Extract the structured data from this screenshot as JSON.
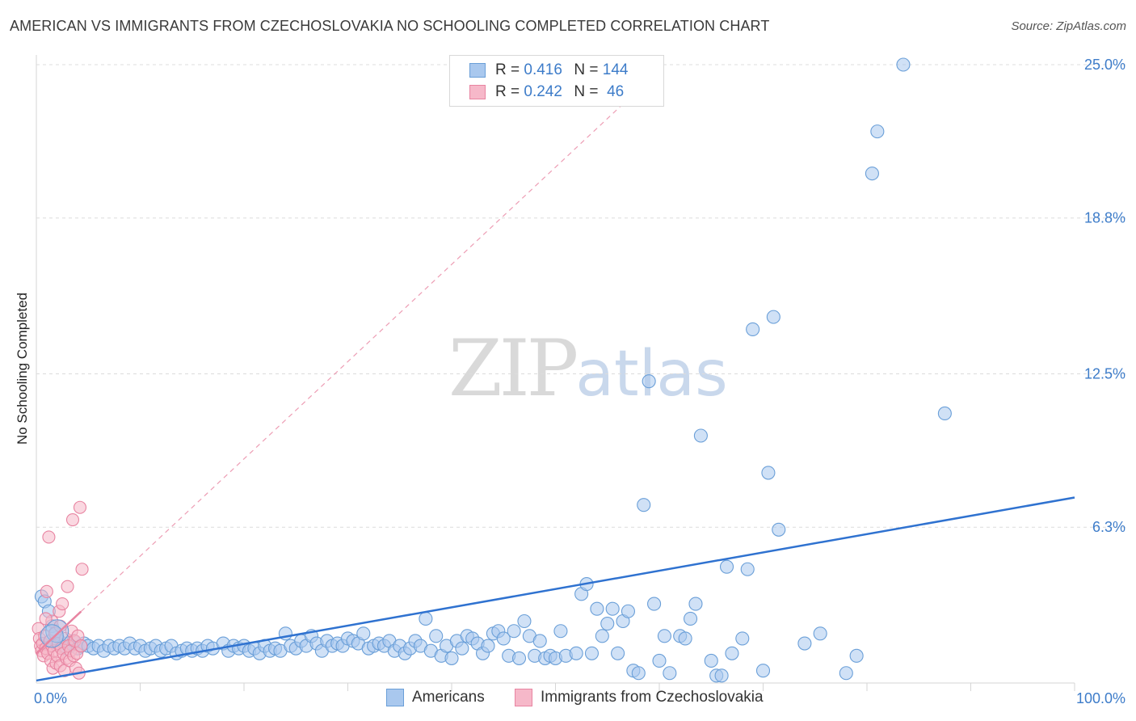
{
  "title": "AMERICAN VS IMMIGRANTS FROM CZECHOSLOVAKIA NO SCHOOLING COMPLETED CORRELATION CHART",
  "source": "Source: ZipAtlas.com",
  "watermark": {
    "zip": "ZIP",
    "atlas": "atlas"
  },
  "legend": {
    "rows": [
      {
        "r_label": "R =",
        "r": "0.416",
        "n_label": "N =",
        "n": "144",
        "color": "#a9c8ee",
        "border": "#6a9fd8"
      },
      {
        "r_label": "R =",
        "r": "0.242",
        "n_label": "N =",
        "n": "46",
        "color": "#f6b8c9",
        "border": "#e884a1"
      }
    ]
  },
  "bottom_legend": [
    {
      "label": "Americans",
      "color": "#a9c8ee",
      "border": "#6a9fd8"
    },
    {
      "label": "Immigrants from Czechoslovakia",
      "color": "#f6b8c9",
      "border": "#e884a1"
    }
  ],
  "chart_data": {
    "type": "scatter",
    "xlabel": "",
    "ylabel": "No Schooling Completed",
    "xlim": [
      0,
      100
    ],
    "ylim": [
      0,
      25.0
    ],
    "x_tick_labels": [
      {
        "value": 0,
        "label": "0.0%"
      },
      {
        "value": 100,
        "label": "100.0%"
      }
    ],
    "y_ticks": [
      {
        "value": 6.3,
        "label": "6.3%"
      },
      {
        "value": 12.5,
        "label": "12.5%"
      },
      {
        "value": 18.8,
        "label": "18.8%"
      },
      {
        "value": 25.0,
        "label": "25.0%"
      }
    ],
    "grid": true,
    "series": [
      {
        "name": "Americans",
        "color": "#a9c8ee",
        "stroke": "#6a9fd8",
        "trend": {
          "x": [
            0,
            100
          ],
          "y": [
            0.1,
            7.5
          ],
          "color": "#2f72d0",
          "style": "solid"
        },
        "points": [
          [
            0.5,
            3.5
          ],
          [
            0.8,
            3.3
          ],
          [
            1.2,
            2.9
          ],
          [
            1.5,
            2.3
          ],
          [
            1.8,
            2.0
          ],
          [
            2.0,
            1.6
          ],
          [
            2.2,
            1.7
          ],
          [
            2.5,
            1.5
          ],
          [
            2.8,
            1.4
          ],
          [
            3.0,
            1.6
          ],
          [
            3.3,
            1.5
          ],
          [
            3.6,
            1.7
          ],
          [
            4.0,
            1.4
          ],
          [
            4.3,
            1.5
          ],
          [
            4.6,
            1.6
          ],
          [
            5.0,
            1.5
          ],
          [
            5.5,
            1.4
          ],
          [
            6.0,
            1.5
          ],
          [
            6.5,
            1.3
          ],
          [
            7.0,
            1.5
          ],
          [
            7.5,
            1.4
          ],
          [
            8.0,
            1.5
          ],
          [
            8.5,
            1.4
          ],
          [
            9.0,
            1.6
          ],
          [
            9.5,
            1.4
          ],
          [
            10.0,
            1.5
          ],
          [
            10.5,
            1.3
          ],
          [
            11.0,
            1.4
          ],
          [
            11.5,
            1.5
          ],
          [
            12.0,
            1.3
          ],
          [
            12.5,
            1.4
          ],
          [
            13.0,
            1.5
          ],
          [
            13.5,
            1.2
          ],
          [
            14.0,
            1.3
          ],
          [
            14.5,
            1.4
          ],
          [
            15.0,
            1.3
          ],
          [
            15.5,
            1.4
          ],
          [
            16.0,
            1.3
          ],
          [
            16.5,
            1.5
          ],
          [
            17.0,
            1.4
          ],
          [
            18.0,
            1.6
          ],
          [
            18.5,
            1.3
          ],
          [
            19.0,
            1.5
          ],
          [
            19.5,
            1.4
          ],
          [
            20.0,
            1.5
          ],
          [
            20.5,
            1.3
          ],
          [
            21.0,
            1.4
          ],
          [
            21.5,
            1.2
          ],
          [
            22.0,
            1.5
          ],
          [
            22.5,
            1.3
          ],
          [
            23.0,
            1.4
          ],
          [
            23.5,
            1.3
          ],
          [
            24.0,
            2.0
          ],
          [
            24.5,
            1.5
          ],
          [
            25.0,
            1.4
          ],
          [
            25.5,
            1.7
          ],
          [
            26.0,
            1.5
          ],
          [
            26.5,
            1.9
          ],
          [
            27.0,
            1.6
          ],
          [
            27.5,
            1.3
          ],
          [
            28.0,
            1.7
          ],
          [
            28.5,
            1.5
          ],
          [
            29.0,
            1.6
          ],
          [
            29.5,
            1.5
          ],
          [
            30.0,
            1.8
          ],
          [
            30.5,
            1.7
          ],
          [
            31.0,
            1.6
          ],
          [
            31.5,
            2.0
          ],
          [
            32.0,
            1.4
          ],
          [
            32.5,
            1.5
          ],
          [
            33.0,
            1.6
          ],
          [
            33.5,
            1.5
          ],
          [
            34.0,
            1.7
          ],
          [
            34.5,
            1.3
          ],
          [
            35.0,
            1.5
          ],
          [
            35.5,
            1.2
          ],
          [
            36.0,
            1.4
          ],
          [
            36.5,
            1.7
          ],
          [
            37.0,
            1.5
          ],
          [
            37.5,
            2.6
          ],
          [
            38.0,
            1.3
          ],
          [
            38.5,
            1.9
          ],
          [
            39.0,
            1.1
          ],
          [
            39.5,
            1.5
          ],
          [
            40.0,
            1.0
          ],
          [
            40.5,
            1.7
          ],
          [
            41.0,
            1.4
          ],
          [
            41.5,
            1.9
          ],
          [
            42.0,
            1.8
          ],
          [
            42.5,
            1.6
          ],
          [
            43.0,
            1.2
          ],
          [
            43.5,
            1.5
          ],
          [
            44.0,
            2.0
          ],
          [
            44.5,
            2.1
          ],
          [
            45.0,
            1.8
          ],
          [
            45.5,
            1.1
          ],
          [
            46.0,
            2.1
          ],
          [
            46.5,
            1.0
          ],
          [
            47.0,
            2.5
          ],
          [
            47.5,
            1.9
          ],
          [
            48.0,
            1.1
          ],
          [
            48.5,
            1.7
          ],
          [
            49.0,
            1.0
          ],
          [
            49.5,
            1.1
          ],
          [
            50.0,
            1.0
          ],
          [
            50.5,
            2.1
          ],
          [
            51.0,
            1.1
          ],
          [
            52.0,
            1.2
          ],
          [
            52.5,
            3.6
          ],
          [
            53.0,
            4.0
          ],
          [
            53.5,
            1.2
          ],
          [
            54.0,
            3.0
          ],
          [
            54.5,
            1.9
          ],
          [
            55.0,
            2.4
          ],
          [
            55.5,
            3.0
          ],
          [
            56.0,
            1.2
          ],
          [
            56.5,
            2.5
          ],
          [
            57.0,
            2.9
          ],
          [
            57.5,
            0.5
          ],
          [
            58.0,
            0.4
          ],
          [
            58.5,
            7.2
          ],
          [
            59.0,
            12.2
          ],
          [
            59.5,
            3.2
          ],
          [
            60.0,
            0.9
          ],
          [
            60.5,
            1.9
          ],
          [
            61.0,
            0.4
          ],
          [
            62.0,
            1.9
          ],
          [
            62.5,
            1.8
          ],
          [
            63.0,
            2.6
          ],
          [
            63.5,
            3.2
          ],
          [
            64.0,
            10.0
          ],
          [
            65.0,
            0.9
          ],
          [
            65.5,
            0.3
          ],
          [
            66.0,
            0.3
          ],
          [
            66.5,
            4.7
          ],
          [
            67.0,
            1.2
          ],
          [
            68.0,
            1.8
          ],
          [
            68.5,
            4.6
          ],
          [
            69.0,
            14.3
          ],
          [
            70.0,
            0.5
          ],
          [
            70.5,
            8.5
          ],
          [
            71.0,
            14.8
          ],
          [
            71.5,
            6.2
          ],
          [
            74.0,
            1.6
          ],
          [
            75.5,
            2.0
          ],
          [
            78.0,
            0.4
          ],
          [
            79.0,
            1.1
          ],
          [
            80.5,
            20.6
          ],
          [
            81.0,
            22.3
          ],
          [
            83.5,
            25.0
          ],
          [
            87.5,
            10.9
          ]
        ]
      },
      {
        "name": "Immigrants from Czechoslovakia",
        "color": "#f6b8c9",
        "stroke": "#e884a1",
        "trend": {
          "x": [
            0,
            58
          ],
          "y": [
            1.2,
            24.0
          ],
          "color": "#e884a1",
          "style": "dashed",
          "solid_until": 4.3
        },
        "points": [
          [
            0.2,
            2.2
          ],
          [
            0.3,
            1.8
          ],
          [
            0.4,
            1.5
          ],
          [
            0.5,
            1.3
          ],
          [
            0.6,
            1.6
          ],
          [
            0.7,
            1.1
          ],
          [
            0.8,
            1.9
          ],
          [
            0.9,
            1.4
          ],
          [
            1.0,
            3.7
          ],
          [
            1.1,
            1.2
          ],
          [
            1.2,
            5.9
          ],
          [
            1.3,
            1.7
          ],
          [
            1.4,
            0.9
          ],
          [
            1.5,
            1.5
          ],
          [
            1.6,
            0.6
          ],
          [
            1.7,
            1.3
          ],
          [
            1.8,
            2.0
          ],
          [
            1.9,
            0.8
          ],
          [
            2.0,
            1.1
          ],
          [
            2.1,
            1.6
          ],
          [
            2.2,
            2.9
          ],
          [
            2.3,
            0.7
          ],
          [
            2.4,
            1.4
          ],
          [
            2.5,
            3.2
          ],
          [
            2.6,
            1.2
          ],
          [
            2.7,
            0.5
          ],
          [
            2.8,
            1.8
          ],
          [
            2.9,
            1.0
          ],
          [
            3.0,
            3.9
          ],
          [
            3.1,
            1.5
          ],
          [
            3.2,
            0.9
          ],
          [
            3.3,
            1.3
          ],
          [
            3.4,
            2.1
          ],
          [
            3.5,
            6.6
          ],
          [
            3.6,
            1.1
          ],
          [
            3.7,
            1.7
          ],
          [
            3.8,
            0.6
          ],
          [
            3.9,
            1.2
          ],
          [
            4.0,
            1.9
          ],
          [
            4.1,
            0.4
          ],
          [
            4.2,
            7.1
          ],
          [
            4.3,
            1.5
          ],
          [
            4.4,
            4.6
          ],
          [
            1.5,
            2.5
          ],
          [
            0.9,
            2.6
          ],
          [
            2.3,
            2.3
          ]
        ]
      }
    ]
  }
}
